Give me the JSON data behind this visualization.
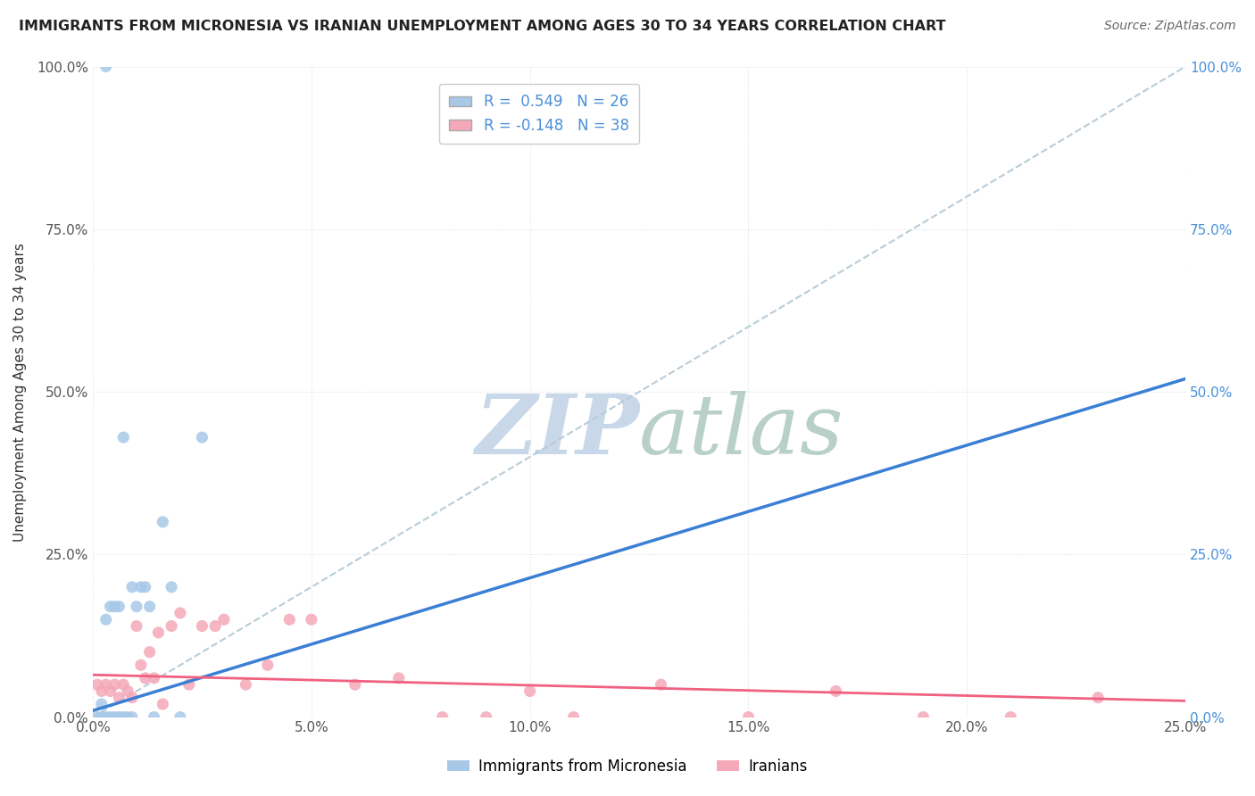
{
  "title": "IMMIGRANTS FROM MICRONESIA VS IRANIAN UNEMPLOYMENT AMONG AGES 30 TO 34 YEARS CORRELATION CHART",
  "source": "Source: ZipAtlas.com",
  "ylabel": "Unemployment Among Ages 30 to 34 years",
  "xlim": [
    0.0,
    0.25
  ],
  "ylim": [
    0.0,
    1.0
  ],
  "r_micronesia": 0.549,
  "n_micronesia": 26,
  "r_iranians": -0.148,
  "n_iranians": 38,
  "color_micronesia": "#a8c8e8",
  "color_iranians": "#f4a8b8",
  "color_micronesia_line": "#3a7fd5",
  "color_iranians_line": "#f06080",
  "color_dashed_line": "#b8ccd8",
  "watermark_zip": "#c8d8e8",
  "watermark_atlas": "#b8d0c8",
  "background_color": "#ffffff",
  "grid_color": "#e0e0e0",
  "micronesia_x": [
    0.001,
    0.002,
    0.002,
    0.003,
    0.003,
    0.004,
    0.004,
    0.005,
    0.005,
    0.006,
    0.006,
    0.007,
    0.008,
    0.009,
    0.009,
    0.01,
    0.011,
    0.012,
    0.013,
    0.014,
    0.016,
    0.018,
    0.02,
    0.025,
    0.003,
    0.007
  ],
  "micronesia_y": [
    0.0,
    0.0,
    0.02,
    0.0,
    0.15,
    0.0,
    0.17,
    0.0,
    0.17,
    0.0,
    0.17,
    0.0,
    0.0,
    0.0,
    0.2,
    0.17,
    0.2,
    0.2,
    0.17,
    0.0,
    0.3,
    0.2,
    0.0,
    0.43,
    1.0,
    0.43
  ],
  "iranians_x": [
    0.001,
    0.002,
    0.003,
    0.004,
    0.005,
    0.006,
    0.007,
    0.008,
    0.009,
    0.01,
    0.011,
    0.012,
    0.013,
    0.014,
    0.015,
    0.016,
    0.018,
    0.02,
    0.022,
    0.025,
    0.028,
    0.03,
    0.035,
    0.04,
    0.045,
    0.05,
    0.06,
    0.07,
    0.08,
    0.09,
    0.1,
    0.11,
    0.13,
    0.15,
    0.17,
    0.19,
    0.21,
    0.23
  ],
  "iranians_y": [
    0.05,
    0.04,
    0.05,
    0.04,
    0.05,
    0.03,
    0.05,
    0.04,
    0.03,
    0.14,
    0.08,
    0.06,
    0.1,
    0.06,
    0.13,
    0.02,
    0.14,
    0.16,
    0.05,
    0.14,
    0.14,
    0.15,
    0.05,
    0.08,
    0.15,
    0.15,
    0.05,
    0.06,
    0.0,
    0.0,
    0.04,
    0.0,
    0.05,
    0.0,
    0.04,
    0.0,
    0.0,
    0.03
  ],
  "mic_trend_x": [
    0.0,
    0.25
  ],
  "mic_trend_y": [
    0.01,
    0.52
  ],
  "iran_trend_x": [
    0.0,
    0.25
  ],
  "iran_trend_y": [
    0.065,
    0.025
  ]
}
